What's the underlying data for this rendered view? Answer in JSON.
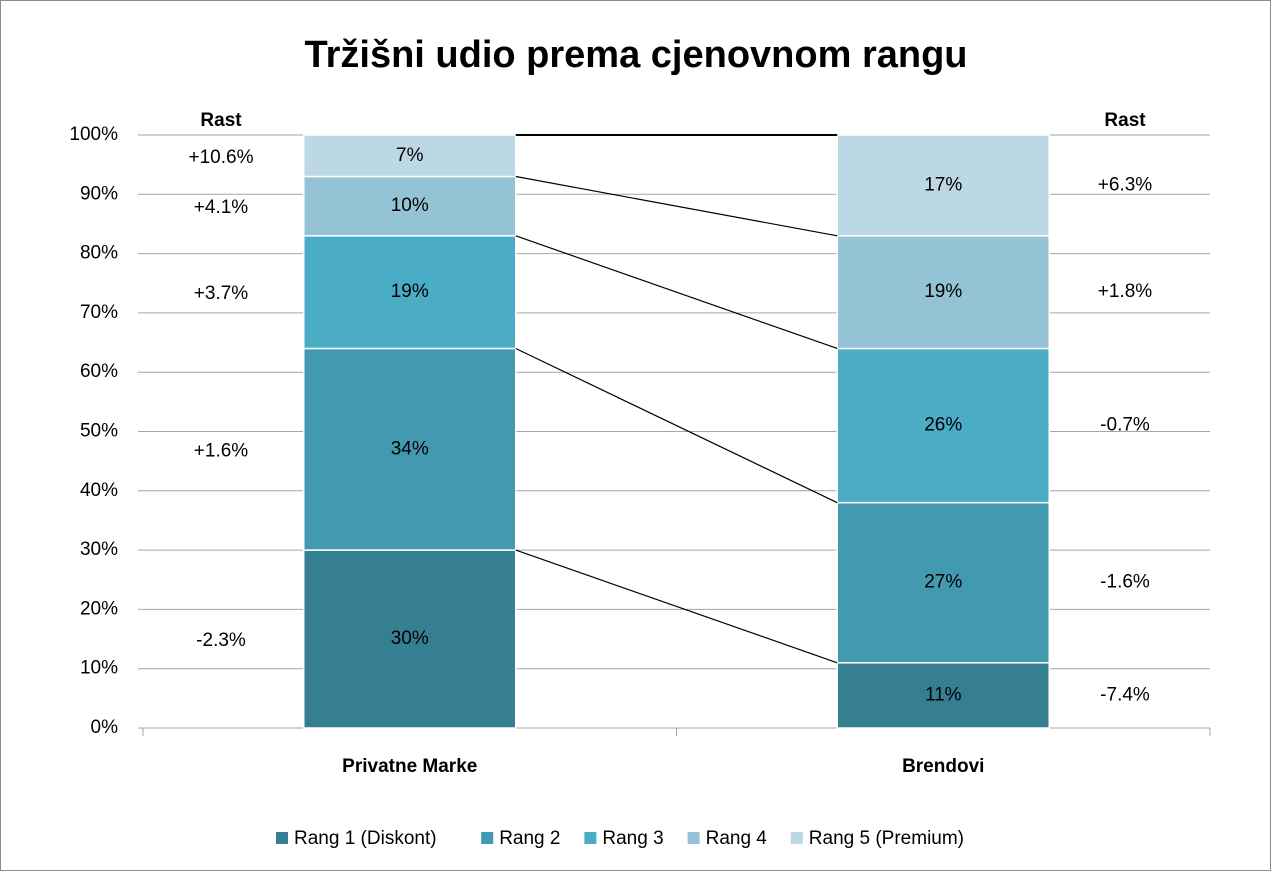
{
  "chart_data": {
    "type": "stacked_bar",
    "title": "Tržišni udio prema cjenovnom rangu",
    "growth_title": "Rast",
    "categories": [
      "Privatne Marke",
      "Brendovi"
    ],
    "series": [
      {
        "name": "Rang 1 (Diskont)",
        "color": "#367f93",
        "values": [
          30,
          11
        ],
        "value_labels": [
          "30%",
          "11%"
        ],
        "growth": [
          -2.3,
          -7.4
        ],
        "growth_labels": [
          "-2.3%",
          "-7.4%"
        ]
      },
      {
        "name": "Rang 2",
        "color": "#4299b0",
        "values": [
          34,
          27
        ],
        "value_labels": [
          "34%",
          "27%"
        ],
        "growth": [
          1.6,
          -1.6
        ],
        "growth_labels": [
          "+1.6%",
          "-1.6%"
        ]
      },
      {
        "name": "Rang 3",
        "color": "#4bacc6",
        "values": [
          19,
          26
        ],
        "value_labels": [
          "19%",
          "26%"
        ],
        "growth": [
          3.7,
          -0.7
        ],
        "growth_labels": [
          "+3.7%",
          "-0.7%"
        ]
      },
      {
        "name": "Rang 4",
        "color": "#93c3d4",
        "values": [
          10,
          19
        ],
        "value_labels": [
          "10%",
          "19%"
        ],
        "growth": [
          4.1,
          1.8
        ],
        "growth_labels": [
          "+4.1%",
          "+1.8%"
        ]
      },
      {
        "name": "Rang 5 (Premium)",
        "color": "#bcd8e4",
        "values": [
          7,
          17
        ],
        "value_labels": [
          "7%",
          "17%"
        ],
        "growth": [
          10.6,
          6.3
        ],
        "growth_labels": [
          "+10.6%",
          "+6.3%"
        ]
      }
    ],
    "ylim": [
      0,
      100
    ],
    "yticks": [
      {
        "value": 0,
        "label": "0%"
      },
      {
        "value": 10,
        "label": "10%"
      },
      {
        "value": 20,
        "label": "20%"
      },
      {
        "value": 30,
        "label": "30%"
      },
      {
        "value": 40,
        "label": "40%"
      },
      {
        "value": 50,
        "label": "50%"
      },
      {
        "value": 60,
        "label": "60%"
      },
      {
        "value": 70,
        "label": "70%"
      },
      {
        "value": 80,
        "label": "80%"
      },
      {
        "value": 90,
        "label": "90%"
      },
      {
        "value": 100,
        "label": "100%"
      }
    ],
    "grid": true,
    "legend": "bottom"
  }
}
